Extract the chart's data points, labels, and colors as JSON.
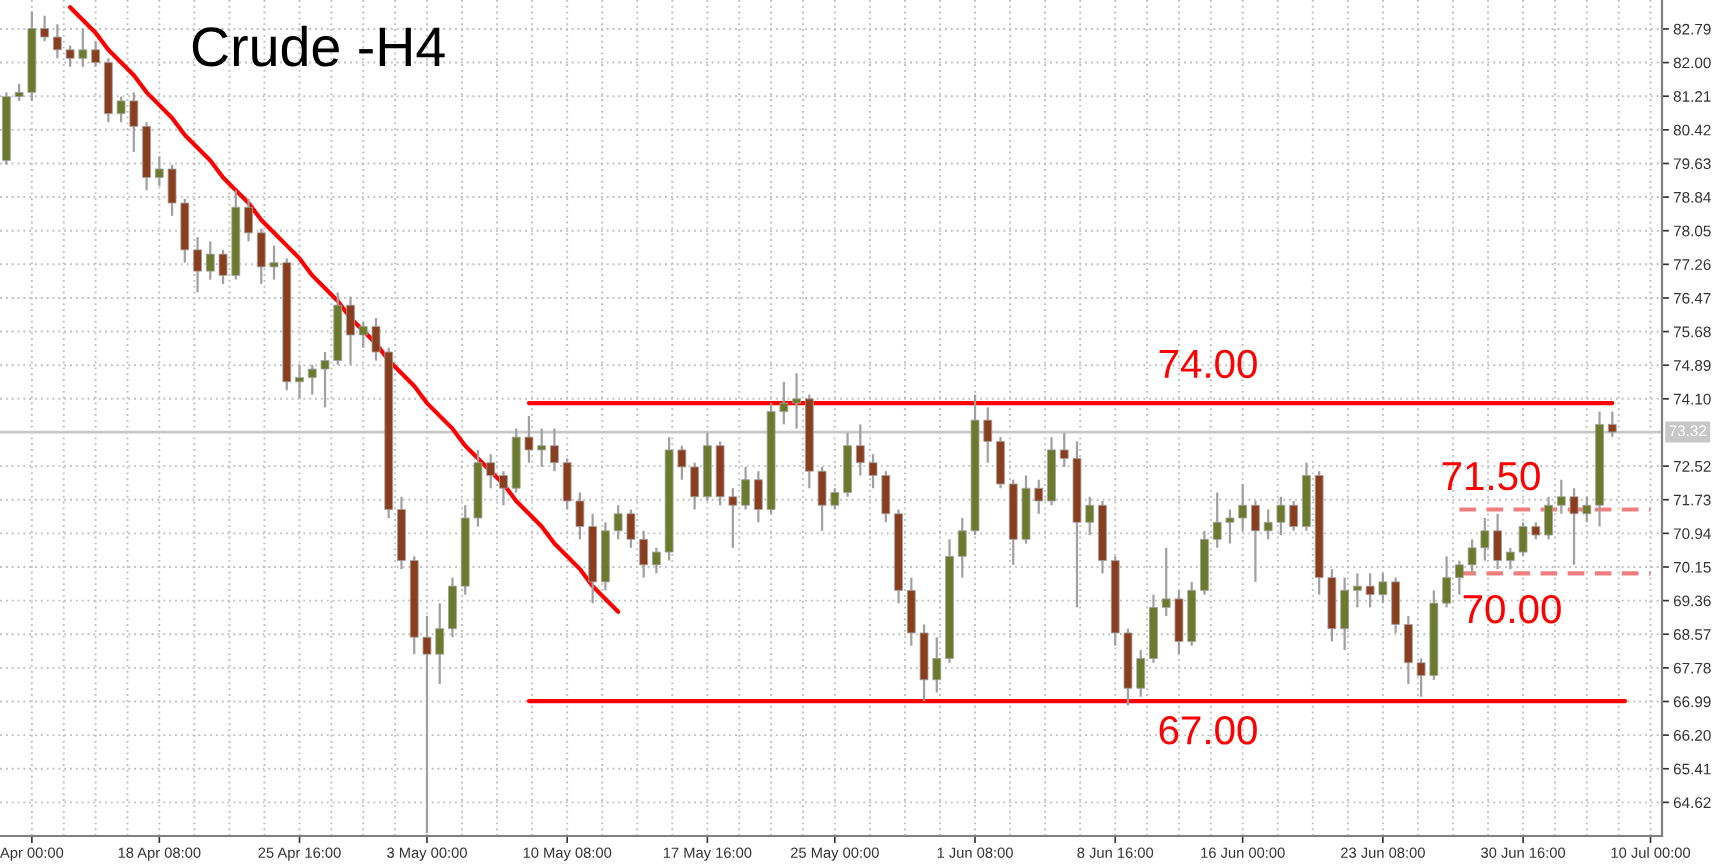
{
  "chart_data": {
    "type": "candlestick",
    "title": "Crude -H4",
    "categories": [
      null,
      null,
      "Apr 00:00",
      null,
      null,
      null,
      null,
      null,
      null,
      null,
      null,
      null,
      "18 Apr 08:00",
      null,
      null,
      null,
      null,
      null,
      null,
      null,
      null,
      null,
      null,
      "25 Apr 16:00",
      null,
      null,
      null,
      null,
      null,
      null,
      null,
      null,
      null,
      "3 May 00:00",
      null,
      null,
      null,
      null,
      null,
      null,
      null,
      null,
      null,
      null,
      "10 May 08:00",
      null,
      null,
      null,
      null,
      null,
      null,
      null,
      null,
      null,
      null,
      "17 May 16:00",
      null,
      null,
      null,
      null,
      null,
      null,
      null,
      null,
      null,
      "25 May 00:00",
      null,
      null,
      null,
      null,
      null,
      null,
      null,
      null,
      null,
      null,
      "1 Jun 08:00",
      null,
      null,
      null,
      null,
      null,
      null,
      null,
      null,
      null,
      null,
      "8 Jun 16:00",
      null,
      null,
      null,
      null,
      null,
      null,
      null,
      null,
      null,
      "16 Jun 00:00",
      null,
      null,
      null,
      null,
      null,
      null,
      null,
      null,
      null,
      null,
      "23 Jun 08:00",
      null,
      null,
      null,
      null,
      null,
      null,
      null,
      null,
      null,
      null,
      "30 Jun 16:00",
      null,
      null,
      null,
      null,
      null,
      null,
      null,
      null,
      null,
      "10 Jul 00:00"
    ],
    "ohlc": [
      [
        79.7,
        81.3,
        79.6,
        81.2
      ],
      [
        81.2,
        81.5,
        81.1,
        81.3
      ],
      [
        81.3,
        83.2,
        81.1,
        82.8
      ],
      [
        82.8,
        83.1,
        82.5,
        82.6
      ],
      [
        82.6,
        82.9,
        82.1,
        82.3
      ],
      [
        82.3,
        82.4,
        81.9,
        82.1
      ],
      [
        82.1,
        82.8,
        81.9,
        82.3
      ],
      [
        82.3,
        82.5,
        81.9,
        82.0
      ],
      [
        82.0,
        82.1,
        80.6,
        80.8
      ],
      [
        80.8,
        81.2,
        80.6,
        81.1
      ],
      [
        81.1,
        81.3,
        79.9,
        80.5
      ],
      [
        80.5,
        80.6,
        79.0,
        79.3
      ],
      [
        79.3,
        79.8,
        79.1,
        79.5
      ],
      [
        79.5,
        79.6,
        78.4,
        78.7
      ],
      [
        78.7,
        78.8,
        77.3,
        77.6
      ],
      [
        77.6,
        77.9,
        76.6,
        77.1
      ],
      [
        77.1,
        77.8,
        76.9,
        77.5
      ],
      [
        77.5,
        77.6,
        76.8,
        77.0
      ],
      [
        77.0,
        79.0,
        76.9,
        78.6
      ],
      [
        78.6,
        78.8,
        77.8,
        78.0
      ],
      [
        78.0,
        78.1,
        76.8,
        77.2
      ],
      [
        77.2,
        77.7,
        76.9,
        77.3
      ],
      [
        77.3,
        77.4,
        74.3,
        74.5
      ],
      [
        74.5,
        74.9,
        74.1,
        74.6
      ],
      [
        74.6,
        74.9,
        74.2,
        74.8
      ],
      [
        74.8,
        75.2,
        73.9,
        75.0
      ],
      [
        75.0,
        76.6,
        74.9,
        76.3
      ],
      [
        76.3,
        76.5,
        74.9,
        75.6
      ],
      [
        75.6,
        75.9,
        75.3,
        75.8
      ],
      [
        75.8,
        76.0,
        75.0,
        75.2
      ],
      [
        75.2,
        75.3,
        71.3,
        71.5
      ],
      [
        71.5,
        71.8,
        70.1,
        70.3
      ],
      [
        70.3,
        70.4,
        68.1,
        68.5
      ],
      [
        68.5,
        69.0,
        63.9,
        68.1
      ],
      [
        68.1,
        69.3,
        67.4,
        68.7
      ],
      [
        68.7,
        69.9,
        68.5,
        69.7
      ],
      [
        69.7,
        71.6,
        69.5,
        71.3
      ],
      [
        71.3,
        72.9,
        71.1,
        72.6
      ],
      [
        72.6,
        72.8,
        72.0,
        72.3
      ],
      [
        72.3,
        72.4,
        71.6,
        72.0
      ],
      [
        72.0,
        73.4,
        71.9,
        73.2
      ],
      [
        73.2,
        73.7,
        72.6,
        72.9
      ],
      [
        72.9,
        73.4,
        72.5,
        73.0
      ],
      [
        73.0,
        73.4,
        72.4,
        72.6
      ],
      [
        72.6,
        72.7,
        71.5,
        71.7
      ],
      [
        71.7,
        71.9,
        70.8,
        71.1
      ],
      [
        71.1,
        71.4,
        69.3,
        69.8
      ],
      [
        69.8,
        71.2,
        69.6,
        71.0
      ],
      [
        71.0,
        71.6,
        70.8,
        71.4
      ],
      [
        71.4,
        71.5,
        70.6,
        70.8
      ],
      [
        70.8,
        71.0,
        69.9,
        70.2
      ],
      [
        70.2,
        70.6,
        70.0,
        70.5
      ],
      [
        70.5,
        73.2,
        70.3,
        72.9
      ],
      [
        72.9,
        73.0,
        72.2,
        72.5
      ],
      [
        72.5,
        72.6,
        71.5,
        71.8
      ],
      [
        71.8,
        73.3,
        71.7,
        73.0
      ],
      [
        73.0,
        73.1,
        71.6,
        71.8
      ],
      [
        71.8,
        72.0,
        70.6,
        71.6
      ],
      [
        71.6,
        72.5,
        71.5,
        72.2
      ],
      [
        72.2,
        72.4,
        71.2,
        71.5
      ],
      [
        71.5,
        74.0,
        71.4,
        73.8
      ],
      [
        73.8,
        74.5,
        73.5,
        74.0
      ],
      [
        74.0,
        74.7,
        73.4,
        74.1
      ],
      [
        74.1,
        74.2,
        72.0,
        72.4
      ],
      [
        72.4,
        72.5,
        71.0,
        71.6
      ],
      [
        71.6,
        72.0,
        71.5,
        71.9
      ],
      [
        71.9,
        73.3,
        71.8,
        73.0
      ],
      [
        73.0,
        73.5,
        72.3,
        72.6
      ],
      [
        72.6,
        72.8,
        72.0,
        72.3
      ],
      [
        72.3,
        72.4,
        71.2,
        71.4
      ],
      [
        71.4,
        71.5,
        69.3,
        69.6
      ],
      [
        69.6,
        69.9,
        68.3,
        68.6
      ],
      [
        68.6,
        68.8,
        67.0,
        67.5
      ],
      [
        67.5,
        68.5,
        67.2,
        68.0
      ],
      [
        68.0,
        70.8,
        67.9,
        70.4
      ],
      [
        70.4,
        71.3,
        69.9,
        71.0
      ],
      [
        71.0,
        74.2,
        70.9,
        73.6
      ],
      [
        73.6,
        73.9,
        72.6,
        73.1
      ],
      [
        73.1,
        73.2,
        72.0,
        72.1
      ],
      [
        72.1,
        72.2,
        70.2,
        70.8
      ],
      [
        70.8,
        72.3,
        70.7,
        72.0
      ],
      [
        72.0,
        72.2,
        71.4,
        71.7
      ],
      [
        71.7,
        73.2,
        71.6,
        72.9
      ],
      [
        72.9,
        73.3,
        72.5,
        72.7
      ],
      [
        72.7,
        73.1,
        69.2,
        71.2
      ],
      [
        71.2,
        71.8,
        70.9,
        71.6
      ],
      [
        71.6,
        71.7,
        70.0,
        70.3
      ],
      [
        70.3,
        70.4,
        68.3,
        68.6
      ],
      [
        68.6,
        68.7,
        66.9,
        67.3
      ],
      [
        67.3,
        68.2,
        67.1,
        68.0
      ],
      [
        68.0,
        69.5,
        67.9,
        69.2
      ],
      [
        69.2,
        70.6,
        69.0,
        69.4
      ],
      [
        69.4,
        69.6,
        68.1,
        68.4
      ],
      [
        68.4,
        69.8,
        68.3,
        69.6
      ],
      [
        69.6,
        71.0,
        69.5,
        70.8
      ],
      [
        70.8,
        71.9,
        70.6,
        71.2
      ],
      [
        71.2,
        71.5,
        70.7,
        71.3
      ],
      [
        71.3,
        72.1,
        71.0,
        71.6
      ],
      [
        71.6,
        71.7,
        69.8,
        71.0
      ],
      [
        71.0,
        71.5,
        70.8,
        71.2
      ],
      [
        71.2,
        71.8,
        70.9,
        71.6
      ],
      [
        71.6,
        71.7,
        71.0,
        71.1
      ],
      [
        71.1,
        72.6,
        71.0,
        72.3
      ],
      [
        72.3,
        72.4,
        69.5,
        69.9
      ],
      [
        69.9,
        70.1,
        68.4,
        68.7
      ],
      [
        68.7,
        69.9,
        68.2,
        69.6
      ],
      [
        69.6,
        70.0,
        69.2,
        69.7
      ],
      [
        69.7,
        70.0,
        69.2,
        69.5
      ],
      [
        69.5,
        70.0,
        69.3,
        69.8
      ],
      [
        69.8,
        69.9,
        68.6,
        68.8
      ],
      [
        68.8,
        69.0,
        67.4,
        67.9
      ],
      [
        67.9,
        68.0,
        67.1,
        67.6
      ],
      [
        67.6,
        69.6,
        67.5,
        69.3
      ],
      [
        69.3,
        70.4,
        69.2,
        69.9
      ],
      [
        69.9,
        70.3,
        69.5,
        70.2
      ],
      [
        70.2,
        70.8,
        70.0,
        70.6
      ],
      [
        70.6,
        71.3,
        70.3,
        71.0
      ],
      [
        71.0,
        71.4,
        70.1,
        70.3
      ],
      [
        70.3,
        70.6,
        70.1,
        70.5
      ],
      [
        70.5,
        71.2,
        70.4,
        71.1
      ],
      [
        71.1,
        71.2,
        70.8,
        70.9
      ],
      [
        70.9,
        71.8,
        70.8,
        71.6
      ],
      [
        71.6,
        72.2,
        71.4,
        71.8
      ],
      [
        71.8,
        72.0,
        70.2,
        71.4
      ],
      [
        71.4,
        71.8,
        71.2,
        71.6
      ],
      [
        71.6,
        73.8,
        71.1,
        73.5
      ],
      [
        73.5,
        73.8,
        73.2,
        73.32
      ],
      null,
      null,
      null
    ],
    "colors": [
      "#6b7b2b",
      "#6b7b2b",
      "#6b7b2b",
      "#8b3e1e",
      "#8b3e1e",
      "#8b3e1e",
      "#6b7b2b",
      "#8b3e1e",
      "#8b3e1e",
      "#6b7b2b",
      "#8b3e1e",
      "#8b3e1e",
      "#6b7b2b",
      "#8b3e1e",
      "#8b3e1e",
      "#8b3e1e",
      "#6b7b2b",
      "#8b3e1e",
      "#6b7b2b",
      "#8b3e1e",
      "#8b3e1e",
      "#6b7b2b",
      "#8b3e1e",
      "#6b7b2b",
      "#6b7b2b",
      "#6b7b2b",
      "#6b7b2b",
      "#8b3e1e",
      "#6b7b2b",
      "#8b3e1e",
      "#8b3e1e",
      "#8b3e1e",
      "#8b3e1e",
      "#8b3e1e",
      "#6b7b2b",
      "#6b7b2b",
      "#6b7b2b",
      "#6b7b2b",
      "#8b3e1e",
      "#8b3e1e",
      "#6b7b2b",
      "#8b3e1e",
      "#6b7b2b",
      "#8b3e1e",
      "#8b3e1e",
      "#8b3e1e",
      "#8b3e1e",
      "#6b7b2b",
      "#6b7b2b",
      "#8b3e1e",
      "#8b3e1e",
      "#6b7b2b",
      "#6b7b2b",
      "#8b3e1e",
      "#8b3e1e",
      "#6b7b2b",
      "#8b3e1e",
      "#8b3e1e",
      "#6b7b2b",
      "#8b3e1e",
      "#6b7b2b",
      "#6b7b2b",
      "#6b7b2b",
      "#8b3e1e",
      "#8b3e1e",
      "#6b7b2b",
      "#6b7b2b",
      "#8b3e1e",
      "#8b3e1e",
      "#8b3e1e",
      "#8b3e1e",
      "#8b3e1e",
      "#8b3e1e",
      "#6b7b2b",
      "#6b7b2b",
      "#6b7b2b",
      "#6b7b2b",
      "#8b3e1e",
      "#8b3e1e",
      "#8b3e1e",
      "#6b7b2b",
      "#8b3e1e",
      "#6b7b2b",
      "#8b3e1e",
      "#8b3e1e",
      "#6b7b2b",
      "#8b3e1e",
      "#8b3e1e",
      "#8b3e1e",
      "#6b7b2b",
      "#6b7b2b",
      "#6b7b2b",
      "#8b3e1e",
      "#6b7b2b",
      "#6b7b2b",
      "#6b7b2b",
      "#6b7b2b",
      "#6b7b2b",
      "#8b3e1e",
      "#6b7b2b",
      "#6b7b2b",
      "#8b3e1e",
      "#6b7b2b",
      "#8b3e1e",
      "#8b3e1e",
      "#6b7b2b",
      "#6b7b2b",
      "#8b3e1e",
      "#6b7b2b",
      "#8b3e1e",
      "#8b3e1e",
      "#8b3e1e",
      "#6b7b2b",
      "#6b7b2b",
      "#6b7b2b",
      "#6b7b2b",
      "#6b7b2b",
      "#8b3e1e",
      "#6b7b2b",
      "#6b7b2b",
      "#8b3e1e",
      "#6b7b2b",
      "#6b7b2b",
      "#8b3e1e",
      "#6b7b2b",
      "#6b7b2b",
      "#8b3e1e",
      null,
      null,
      null
    ],
    "series": [
      {
        "type": "line",
        "color": "#ff0000",
        "values": [
          null,
          null,
          null,
          null,
          null,
          83.3,
          83.0,
          82.7,
          82.3,
          82.0,
          81.7,
          81.3,
          81.0,
          80.7,
          80.3,
          80.0,
          79.7,
          79.3,
          79.0,
          78.7,
          78.3,
          78.0,
          77.7,
          77.4,
          77.0,
          76.7,
          76.4,
          76.0,
          75.7,
          75.4,
          75.0,
          74.7,
          74.4,
          74.0,
          73.7,
          73.4,
          73.0,
          72.7,
          72.4,
          72.1,
          71.7,
          71.4,
          71.1,
          70.7,
          70.4,
          70.1,
          69.7,
          69.4,
          69.1,
          null,
          null,
          null,
          null,
          null,
          null,
          null,
          null,
          null,
          null,
          null,
          null,
          null,
          null,
          null,
          null,
          null,
          null,
          null,
          null,
          null,
          null,
          null,
          null,
          null,
          null,
          null,
          null,
          null,
          null,
          null,
          null,
          null,
          null,
          null,
          null,
          null,
          null,
          null,
          null,
          null,
          null,
          null,
          null,
          null,
          null,
          null,
          null,
          null,
          null,
          null,
          null,
          null,
          null,
          null,
          null,
          null,
          null,
          null,
          null,
          null,
          null,
          null,
          null,
          null,
          null,
          null,
          null,
          null,
          null,
          null,
          null,
          null,
          null,
          null,
          null,
          null,
          null,
          null,
          null,
          null
        ]
      },
      {
        "type": "line",
        "color": "#ff0000",
        "values": [
          null,
          null,
          null,
          null,
          null,
          null,
          null,
          null,
          null,
          null,
          null,
          null,
          null,
          null,
          null,
          null,
          null,
          null,
          null,
          null,
          null,
          null,
          null,
          null,
          null,
          null,
          null,
          null,
          null,
          null,
          null,
          null,
          null,
          null,
          null,
          null,
          null,
          null,
          null,
          null,
          null,
          74,
          74,
          74,
          74,
          74,
          74,
          74,
          74,
          74,
          74,
          74,
          74,
          74,
          74,
          74,
          74,
          74,
          74,
          74,
          74,
          74,
          74,
          74,
          74,
          74,
          74,
          74,
          74,
          74,
          74,
          74,
          74,
          74,
          74,
          74,
          74,
          74,
          74,
          74,
          74,
          74,
          74,
          74,
          74,
          74,
          74,
          74,
          74,
          74,
          74,
          74,
          74,
          74,
          74,
          74,
          74,
          74,
          74,
          74,
          74,
          74,
          74,
          74,
          74,
          74,
          74,
          74,
          74,
          74,
          74,
          74,
          74,
          74,
          74,
          74,
          74,
          74,
          74,
          74,
          74,
          74,
          74,
          74,
          74,
          74,
          74,
          null,
          null,
          null
        ]
      },
      {
        "type": "line",
        "color": "#ff0000",
        "values": [
          null,
          null,
          null,
          null,
          null,
          null,
          null,
          null,
          null,
          null,
          null,
          null,
          null,
          null,
          null,
          null,
          null,
          null,
          null,
          null,
          null,
          null,
          null,
          null,
          null,
          null,
          null,
          null,
          null,
          null,
          null,
          null,
          null,
          null,
          null,
          null,
          null,
          null,
          null,
          null,
          null,
          67,
          67,
          67,
          67,
          67,
          67,
          67,
          67,
          67,
          67,
          67,
          67,
          67,
          67,
          67,
          67,
          67,
          67,
          67,
          67,
          67,
          67,
          67,
          67,
          67,
          67,
          67,
          67,
          67,
          67,
          67,
          67,
          67,
          67,
          67,
          67,
          67,
          67,
          67,
          67,
          67,
          67,
          67,
          67,
          67,
          67,
          67,
          67,
          67,
          67,
          67,
          67,
          67,
          67,
          67,
          67,
          67,
          67,
          67,
          67,
          67,
          67,
          67,
          67,
          67,
          67,
          67,
          67,
          67,
          67,
          67,
          67,
          67,
          67,
          67,
          67,
          67,
          67,
          67,
          67,
          67,
          67,
          67,
          67,
          67,
          67,
          67,
          null,
          null
        ]
      },
      {
        "type": "line",
        "color": "#f08080",
        "line_style": "dashed",
        "values": [
          null,
          null,
          null,
          null,
          null,
          null,
          null,
          null,
          null,
          null,
          null,
          null,
          null,
          null,
          null,
          null,
          null,
          null,
          null,
          null,
          null,
          null,
          null,
          null,
          null,
          null,
          null,
          null,
          null,
          null,
          null,
          null,
          null,
          null,
          null,
          null,
          null,
          null,
          null,
          null,
          null,
          null,
          null,
          null,
          null,
          null,
          null,
          null,
          null,
          null,
          null,
          null,
          null,
          null,
          null,
          null,
          null,
          null,
          null,
          null,
          null,
          null,
          null,
          null,
          null,
          null,
          null,
          null,
          null,
          null,
          null,
          null,
          null,
          null,
          null,
          null,
          null,
          null,
          null,
          null,
          null,
          null,
          null,
          null,
          null,
          null,
          null,
          null,
          null,
          null,
          null,
          null,
          null,
          null,
          null,
          null,
          null,
          null,
          null,
          null,
          null,
          null,
          null,
          null,
          null,
          null,
          null,
          null,
          null,
          null,
          null,
          null,
          null,
          null,
          71.5,
          71.5,
          71.5,
          71.5,
          71.5,
          71.5,
          71.5,
          71.5,
          71.5,
          71.5,
          71.5,
          71.5,
          71.5,
          71.5,
          71.5,
          71.5
        ]
      },
      {
        "type": "line",
        "color": "#f08080",
        "line_style": "dashed",
        "values": [
          null,
          null,
          null,
          null,
          null,
          null,
          null,
          null,
          null,
          null,
          null,
          null,
          null,
          null,
          null,
          null,
          null,
          null,
          null,
          null,
          null,
          null,
          null,
          null,
          null,
          null,
          null,
          null,
          null,
          null,
          null,
          null,
          null,
          null,
          null,
          null,
          null,
          null,
          null,
          null,
          null,
          null,
          null,
          null,
          null,
          null,
          null,
          null,
          null,
          null,
          null,
          null,
          null,
          null,
          null,
          null,
          null,
          null,
          null,
          null,
          null,
          null,
          null,
          null,
          null,
          null,
          null,
          null,
          null,
          null,
          null,
          null,
          null,
          null,
          null,
          null,
          null,
          null,
          null,
          null,
          null,
          null,
          null,
          null,
          null,
          null,
          null,
          null,
          null,
          null,
          null,
          null,
          null,
          null,
          null,
          null,
          null,
          null,
          null,
          null,
          null,
          null,
          null,
          null,
          null,
          null,
          null,
          null,
          null,
          null,
          null,
          null,
          null,
          null,
          70,
          70,
          70,
          70,
          70,
          70,
          70,
          70,
          70,
          70,
          70,
          70,
          70,
          70,
          70,
          70
        ]
      }
    ],
    "annotations": [
      "74.00",
      "67.00",
      "71.50",
      "70.00"
    ],
    "ref_lines": [
      {
        "axis": "y",
        "value": 73.32,
        "label": "73.32",
        "color": "#c8c8c8"
      }
    ],
    "ylim": [
      63.83,
      83.47
    ],
    "yticks": [
      82.79,
      {
        "value": 82.0,
        "label": "82.00"
      },
      81.21,
      80.42,
      79.63,
      78.84,
      78.05,
      77.26,
      76.47,
      75.68,
      74.89,
      {
        "value": 74.1,
        "label": "74.10"
      },
      72.52,
      71.73,
      70.94,
      70.15,
      69.36,
      68.57,
      67.78,
      66.99,
      {
        "value": 66.2,
        "label": "66.20"
      },
      65.41,
      64.62
    ],
    "grid": true
  }
}
